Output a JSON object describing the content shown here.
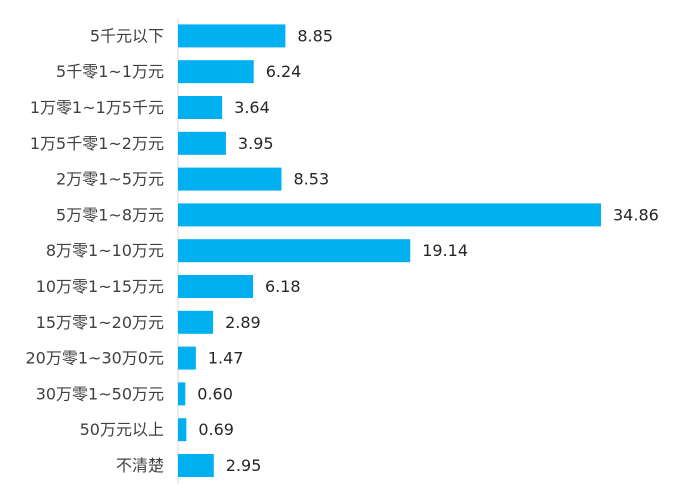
{
  "chart_data": {
    "type": "bar",
    "orientation": "horizontal",
    "title": "",
    "xlabel": "",
    "ylabel": "",
    "categories": [
      "5千元以下",
      "5千零1~1万元",
      "1万零1~1万5千元",
      "1万5千零1~2万元",
      "2万零1~5万元",
      "5万零1~8万元",
      "8万零1~10万元",
      "10万零1~15万元",
      "15万零1~20万元",
      "20万零1~30万0元",
      "30万零1~50万元",
      "50万元以上",
      "不清楚"
    ],
    "values": [
      8.85,
      6.24,
      3.64,
      3.95,
      8.53,
      34.86,
      19.14,
      6.18,
      2.89,
      1.47,
      0.6,
      0.69,
      2.95
    ],
    "value_labels": [
      "8.85",
      "6.24",
      "3.64",
      "3.95",
      "8.53",
      "34.86",
      "19.14",
      "6.18",
      "2.89",
      "1.47",
      "0.60",
      "0.69",
      "2.95"
    ],
    "xlim": [
      0,
      36
    ],
    "grid": false,
    "legend": "none",
    "bar_color": "#00b0f0"
  }
}
